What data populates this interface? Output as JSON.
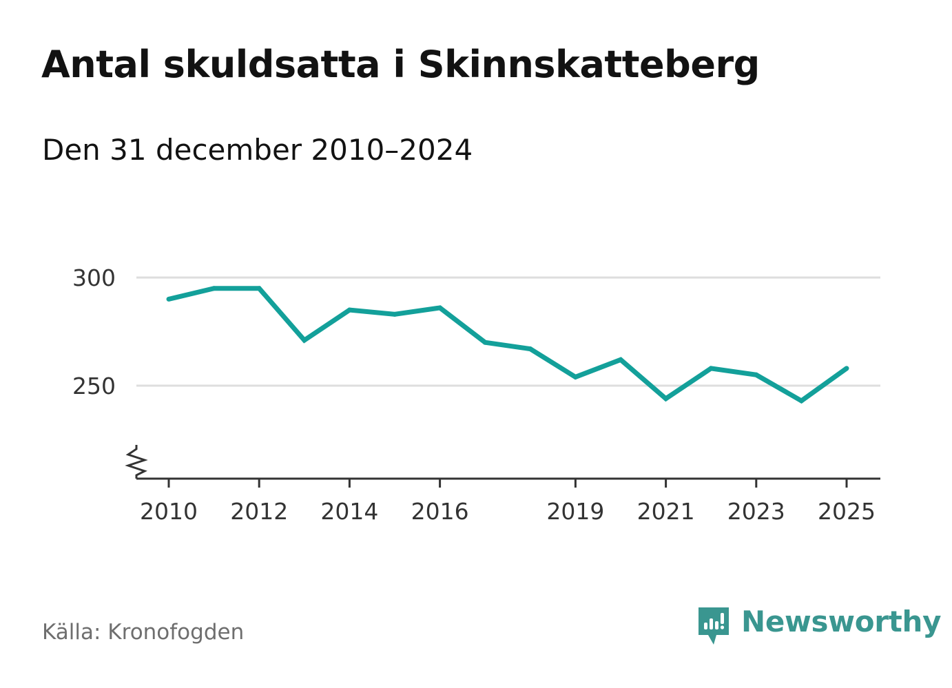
{
  "header": {
    "title": "Antal skuldsatta i Skinnskatteberg",
    "subtitle": "Den 31 december 2010–2024"
  },
  "footer": {
    "source": "Källa: Kronofogden",
    "brand": "Newsworthy"
  },
  "colors": {
    "line": "#13a09a",
    "grid": "#dedede",
    "axis": "#333333",
    "brand": "#3a9690"
  },
  "chart_data": {
    "type": "line",
    "title": "Antal skuldsatta i Skinnskatteberg",
    "subtitle": "Den 31 december 2010–2024",
    "xlabel": "",
    "ylabel": "",
    "x": [
      2010,
      2011,
      2012,
      2013,
      2014,
      2015,
      2016,
      2017,
      2018,
      2019,
      2020,
      2021,
      2022,
      2023,
      2024,
      2025
    ],
    "series": [
      {
        "name": "Antal skuldsatta",
        "values": [
          290,
          295,
          295,
          271,
          285,
          283,
          286,
          270,
          267,
          254,
          262,
          244,
          258,
          255,
          243,
          258
        ]
      }
    ],
    "x_ticks": [
      "2010",
      "2012",
      "2014",
      "2016",
      "2019",
      "2021",
      "2023",
      "2025"
    ],
    "y_ticks": [
      "300",
      "250"
    ],
    "ylim": [
      210,
      300
    ],
    "xlim": [
      2010,
      2025
    ],
    "grid": true,
    "axis_break": true
  }
}
